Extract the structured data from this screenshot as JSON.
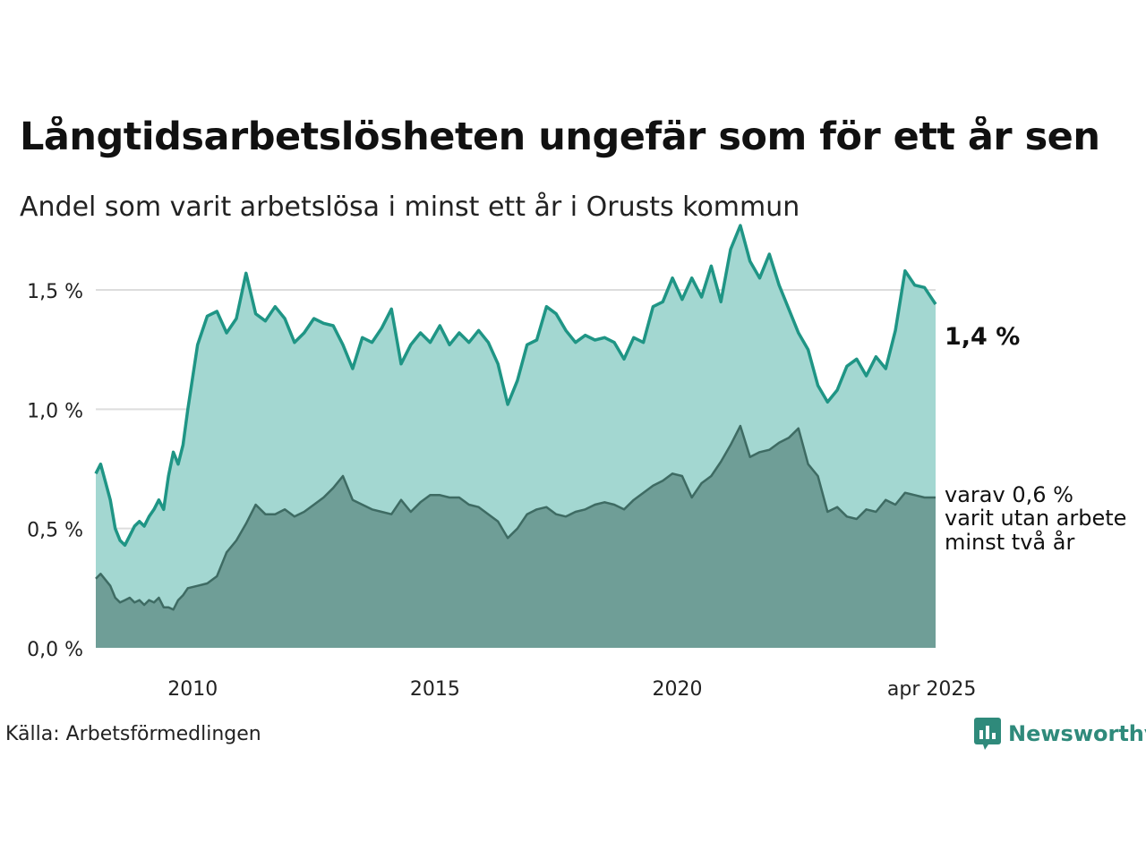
{
  "title": "Långtidsarbetslösheten ungefär som för ett år sen",
  "subtitle": "Andel som varit arbetslösa i minst ett år i Orusts kommun",
  "source": "Källa: Arbetsförmedlingen",
  "brand": "Newsworthy",
  "annotations": {
    "main": "1,4 %",
    "sub_lines": [
      "varav 0,6 %",
      "varit utan arbete",
      "minst två år"
    ]
  },
  "colors": {
    "total_line": "#1f9585",
    "total_fill": "#a3d7d1",
    "long_line": "#3e6b63",
    "long_fill": "#6f9e97",
    "grid": "#dddddd",
    "brand": "#2f8a7b"
  },
  "chart_data": {
    "type": "area",
    "title": "Långtidsarbetslösheten ungefär som för ett år sen",
    "subtitle": "Andel som varit arbetslösa i minst ett år i Orusts kommun",
    "xlabel": "",
    "ylabel": "",
    "x_range": [
      2008.0,
      2025.33
    ],
    "ylim": [
      0,
      1.8
    ],
    "yticks": [
      0,
      0.5,
      1.0,
      1.5
    ],
    "ytick_labels": [
      "0,0 %",
      "0,5 %",
      "1,0 %",
      "1,5 %"
    ],
    "xticks": [
      2010,
      2015,
      2020,
      2025.25
    ],
    "xtick_labels": [
      "2010",
      "2015",
      "2020",
      "apr 2025"
    ],
    "grid": true,
    "series": [
      {
        "name": "",
        "x": [
          2008.0,
          2008.1,
          2008.3,
          2008.4,
          2008.5,
          2008.6,
          2008.7,
          2008.8,
          2008.9,
          2009.0,
          2009.1,
          2009.2,
          2009.3,
          2009.4,
          2009.5,
          2009.6,
          2009.7,
          2009.8,
          2009.9,
          2010.1,
          2010.3,
          2010.5,
          2010.7,
          2010.9,
          2011.1,
          2011.3,
          2011.5,
          2011.7,
          2011.9,
          2012.1,
          2012.3,
          2012.5,
          2012.7,
          2012.9,
          2013.1,
          2013.3,
          2013.5,
          2013.7,
          2013.9,
          2014.1,
          2014.3,
          2014.5,
          2014.7,
          2014.9,
          2015.1,
          2015.3,
          2015.5,
          2015.7,
          2015.9,
          2016.1,
          2016.3,
          2016.5,
          2016.7,
          2016.9,
          2017.1,
          2017.3,
          2017.5,
          2017.7,
          2017.9,
          2018.1,
          2018.3,
          2018.5,
          2018.7,
          2018.9,
          2019.1,
          2019.3,
          2019.5,
          2019.7,
          2019.9,
          2020.1,
          2020.3,
          2020.5,
          2020.7,
          2020.9,
          2021.1,
          2021.3,
          2021.5,
          2021.7,
          2021.9,
          2022.1,
          2022.3,
          2022.5,
          2022.7,
          2022.9,
          2023.1,
          2023.3,
          2023.5,
          2023.7,
          2023.9,
          2024.1,
          2024.3,
          2024.5,
          2024.7,
          2024.9,
          2025.1,
          2025.33
        ],
        "values": [
          0.73,
          0.77,
          0.62,
          0.5,
          0.45,
          0.43,
          0.47,
          0.51,
          0.53,
          0.51,
          0.55,
          0.58,
          0.62,
          0.58,
          0.72,
          0.82,
          0.77,
          0.85,
          1.0,
          1.27,
          1.39,
          1.41,
          1.32,
          1.38,
          1.57,
          1.4,
          1.37,
          1.43,
          1.38,
          1.28,
          1.32,
          1.38,
          1.36,
          1.35,
          1.27,
          1.17,
          1.3,
          1.28,
          1.34,
          1.42,
          1.19,
          1.27,
          1.32,
          1.28,
          1.35,
          1.27,
          1.32,
          1.28,
          1.33,
          1.28,
          1.19,
          1.02,
          1.12,
          1.27,
          1.29,
          1.43,
          1.4,
          1.33,
          1.28,
          1.31,
          1.29,
          1.3,
          1.28,
          1.21,
          1.3,
          1.28,
          1.43,
          1.45,
          1.55,
          1.46,
          1.55,
          1.47,
          1.6,
          1.45,
          1.67,
          1.77,
          1.62,
          1.55,
          1.65,
          1.52,
          1.42,
          1.32,
          1.25,
          1.1,
          1.03,
          1.08,
          1.18,
          1.21,
          1.14,
          1.22,
          1.17,
          1.33,
          1.58,
          1.52,
          1.51,
          1.44
        ]
      },
      {
        "name": "",
        "x": [
          2008.0,
          2008.1,
          2008.3,
          2008.4,
          2008.5,
          2008.6,
          2008.7,
          2008.8,
          2008.9,
          2009.0,
          2009.1,
          2009.2,
          2009.3,
          2009.4,
          2009.5,
          2009.6,
          2009.7,
          2009.8,
          2009.9,
          2010.1,
          2010.3,
          2010.5,
          2010.7,
          2010.9,
          2011.1,
          2011.3,
          2011.5,
          2011.7,
          2011.9,
          2012.1,
          2012.3,
          2012.5,
          2012.7,
          2012.9,
          2013.1,
          2013.3,
          2013.5,
          2013.7,
          2013.9,
          2014.1,
          2014.3,
          2014.5,
          2014.7,
          2014.9,
          2015.1,
          2015.3,
          2015.5,
          2015.7,
          2015.9,
          2016.1,
          2016.3,
          2016.5,
          2016.7,
          2016.9,
          2017.1,
          2017.3,
          2017.5,
          2017.7,
          2017.9,
          2018.1,
          2018.3,
          2018.5,
          2018.7,
          2018.9,
          2019.1,
          2019.3,
          2019.5,
          2019.7,
          2019.9,
          2020.1,
          2020.3,
          2020.5,
          2020.7,
          2020.9,
          2021.1,
          2021.3,
          2021.5,
          2021.7,
          2021.9,
          2022.1,
          2022.3,
          2022.5,
          2022.7,
          2022.9,
          2023.1,
          2023.3,
          2023.5,
          2023.7,
          2023.9,
          2024.1,
          2024.3,
          2024.5,
          2024.7,
          2024.9,
          2025.1,
          2025.33
        ],
        "values": [
          0.29,
          0.31,
          0.26,
          0.21,
          0.19,
          0.2,
          0.21,
          0.19,
          0.2,
          0.18,
          0.2,
          0.19,
          0.21,
          0.17,
          0.17,
          0.16,
          0.2,
          0.22,
          0.25,
          0.26,
          0.27,
          0.3,
          0.4,
          0.45,
          0.52,
          0.6,
          0.56,
          0.56,
          0.58,
          0.55,
          0.57,
          0.6,
          0.63,
          0.67,
          0.72,
          0.62,
          0.6,
          0.58,
          0.57,
          0.56,
          0.62,
          0.57,
          0.61,
          0.64,
          0.64,
          0.63,
          0.63,
          0.6,
          0.59,
          0.56,
          0.53,
          0.46,
          0.5,
          0.56,
          0.58,
          0.59,
          0.56,
          0.55,
          0.57,
          0.58,
          0.6,
          0.61,
          0.6,
          0.58,
          0.62,
          0.65,
          0.68,
          0.7,
          0.73,
          0.72,
          0.63,
          0.69,
          0.72,
          0.78,
          0.85,
          0.93,
          0.8,
          0.82,
          0.83,
          0.86,
          0.88,
          0.92,
          0.77,
          0.72,
          0.57,
          0.59,
          0.55,
          0.54,
          0.58,
          0.57,
          0.62,
          0.6,
          0.65,
          0.64,
          0.63,
          0.63
        ]
      }
    ],
    "annotations": [
      "1,4 %",
      "varav 0,6 %",
      "varit utan arbete",
      "minst två år"
    ]
  }
}
